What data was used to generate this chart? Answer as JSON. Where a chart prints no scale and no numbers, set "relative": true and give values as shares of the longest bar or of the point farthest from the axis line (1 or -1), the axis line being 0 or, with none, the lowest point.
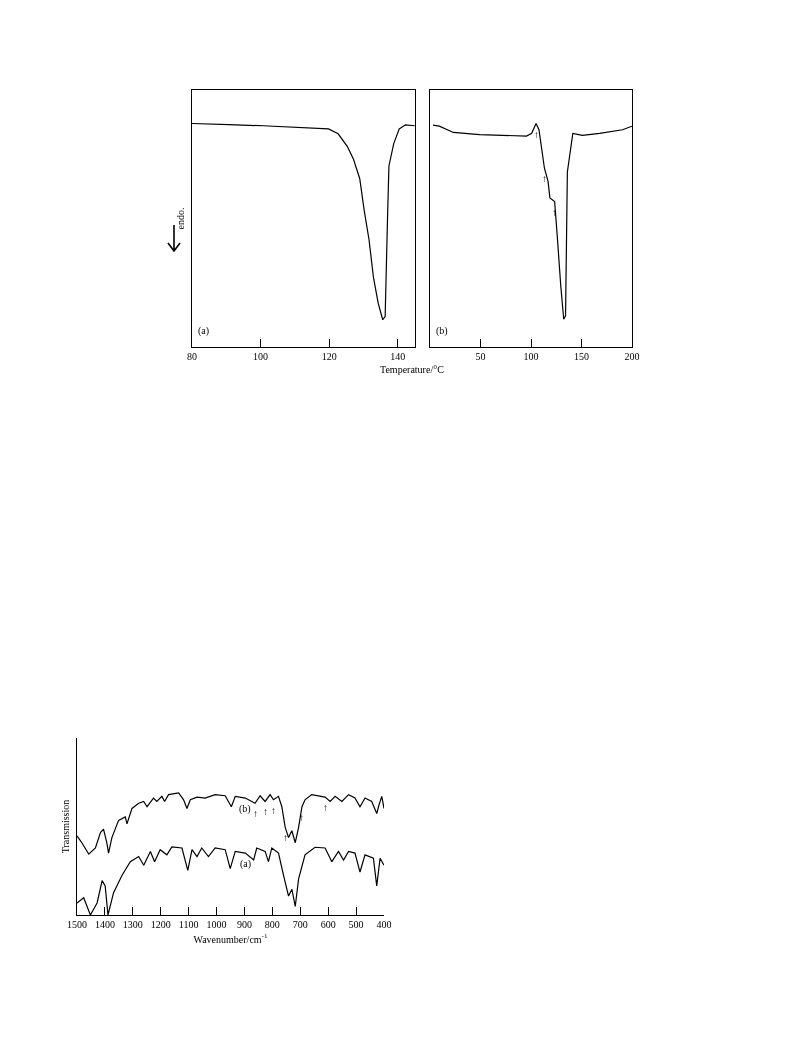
{
  "chart_data": [
    {
      "type": "line",
      "relative": true,
      "ylabel": "endo.",
      "annotations": [
        "(a)"
      ],
      "xlim": [
        80,
        145
      ],
      "xticks": [
        80,
        100,
        120,
        140
      ],
      "tick_labels": "x",
      "grid": false,
      "marker": "none",
      "line_style": "solid",
      "series": [
        {
          "color": "#000000",
          "x": [
            80,
            90.8,
            100.7,
            119.8,
            122.6,
            125.3,
            127.1,
            128.9,
            130.2,
            131.6,
            132.9,
            134.3,
            135.6,
            136.3,
            137,
            137.4,
            138.8,
            140.4,
            142.2,
            144.9
          ],
          "values": [
            1.0,
            0.995,
            0.99,
            0.976,
            0.954,
            0.897,
            0.839,
            0.753,
            0.61,
            0.48,
            0.31,
            0.194,
            0.122,
            0.136,
            0.58,
            0.81,
            0.91,
            0.976,
            0.994,
            0.99
          ]
        }
      ]
    },
    {
      "type": "line",
      "relative": true,
      "xlabel": "Temperature/°C",
      "annotations": [
        "(b)",
        {
          "text": "↑",
          "x": 105,
          "y": 1.0
        },
        {
          "text": "↑",
          "x": 113.3,
          "y": 0.8
        },
        {
          "text": "↑",
          "x": 123.4,
          "y": 0.651
        }
      ],
      "xlim": [
        0,
        200
      ],
      "xticks": [
        50,
        100,
        150,
        200
      ],
      "tick_labels": "x",
      "grid": false,
      "marker": "none",
      "line_style": "solid",
      "series": [
        {
          "color": "#000000",
          "x": [
            3,
            9.3,
            23.1,
            49,
            95.5,
            100.7,
            105,
            107.9,
            113.3,
            116.9,
            118.7,
            123.4,
            125.9,
            129.5,
            132.4,
            134.2,
            136,
            141.4,
            150.9,
            167.9,
            190.6,
            200
          ],
          "values": [
            0.993,
            0.988,
            0.96,
            0.95,
            0.944,
            0.956,
            1.0,
            0.972,
            0.8,
            0.741,
            0.667,
            0.651,
            0.502,
            0.272,
            0.124,
            0.14,
            0.783,
            0.956,
            0.947,
            0.956,
            0.972,
            0.988
          ]
        }
      ]
    },
    {
      "type": "line",
      "relative": true,
      "xlabel": "Wavenumber/cm$^{-1}$",
      "ylabel": "Transmission",
      "annotations": [
        {
          "text": "(b)",
          "x": 897,
          "y": 0.958
        },
        {
          "text": "(a)",
          "x": 897,
          "y": 0.507
        },
        {
          "text": "↑",
          "x": 862,
          "y": 0.915
        },
        {
          "text": "↑",
          "x": 826,
          "y": 0.93
        },
        {
          "text": "↑",
          "x": 796,
          "y": 0.944
        },
        {
          "text": "↑",
          "x": 754,
          "y": 0.718
        },
        {
          "text": "↑",
          "x": 694,
          "y": 0.887
        },
        {
          "text": "↑",
          "x": 611,
          "y": 0.966
        }
      ],
      "xlim": [
        1500,
        400
      ],
      "xticks": [
        1500,
        1400,
        1300,
        1200,
        1100,
        1000,
        900,
        800,
        700,
        600,
        500,
        400
      ],
      "tick_labels": "x",
      "grid": false,
      "marker": "none",
      "line_style": "solid",
      "series": [
        {
          "color": "#000000",
          "x": [
            1500,
            1482,
            1458,
            1434,
            1416,
            1405,
            1393,
            1387,
            1375,
            1351,
            1327,
            1321,
            1303,
            1279,
            1261,
            1249,
            1226,
            1214,
            1196,
            1186,
            1172,
            1136,
            1118,
            1106,
            1094,
            1070,
            1041,
            1005,
            969,
            947,
            933,
            897,
            862,
            844,
            826,
            808,
            796,
            778,
            766,
            754,
            742,
            730,
            718,
            706,
            694,
            683,
            659,
            611,
            593,
            575,
            551,
            527,
            504,
            486,
            468,
            444,
            426,
            418,
            408,
            400
          ],
          "values": [
            0.648,
            0.59,
            0.499,
            0.549,
            0.676,
            0.704,
            0.59,
            0.507,
            0.634,
            0.775,
            0.803,
            0.746,
            0.873,
            0.915,
            0.93,
            0.887,
            0.958,
            0.93,
            0.972,
            0.93,
            0.986,
            1.0,
            0.944,
            0.873,
            0.944,
            0.966,
            0.958,
            0.986,
            0.977,
            0.887,
            0.972,
            0.958,
            0.915,
            0.977,
            0.93,
            0.986,
            0.944,
            0.972,
            0.887,
            0.718,
            0.634,
            0.69,
            0.592,
            0.718,
            0.887,
            0.944,
            0.986,
            0.966,
            0.93,
            0.972,
            0.93,
            0.986,
            0.958,
            0.887,
            0.958,
            0.93,
            0.831,
            0.901,
            0.972,
            0.873
          ]
        },
        {
          "color": "#000000",
          "x": [
            1500,
            1476,
            1452,
            1428,
            1410,
            1399,
            1389,
            1369,
            1339,
            1309,
            1279,
            1261,
            1237,
            1222,
            1202,
            1178,
            1160,
            1124,
            1103,
            1088,
            1070,
            1053,
            1029,
            1005,
            969,
            951,
            933,
            897,
            867,
            856,
            826,
            814,
            802,
            778,
            760,
            742,
            730,
            718,
            706,
            683,
            647,
            611,
            587,
            563,
            545,
            527,
            504,
            486,
            468,
            438,
            426,
            414,
            400
          ],
          "values": [
            0.099,
            0.141,
            0.0,
            0.099,
            0.282,
            0.239,
            0.0,
            0.183,
            0.324,
            0.437,
            0.479,
            0.408,
            0.521,
            0.437,
            0.535,
            0.493,
            0.558,
            0.549,
            0.366,
            0.535,
            0.479,
            0.549,
            0.479,
            0.549,
            0.535,
            0.38,
            0.521,
            0.507,
            0.451,
            0.549,
            0.521,
            0.437,
            0.549,
            0.507,
            0.324,
            0.155,
            0.211,
            0.07,
            0.296,
            0.493,
            0.555,
            0.549,
            0.437,
            0.521,
            0.451,
            0.521,
            0.507,
            0.352,
            0.493,
            0.465,
            0.239,
            0.465,
            0.408
          ]
        }
      ]
    }
  ]
}
